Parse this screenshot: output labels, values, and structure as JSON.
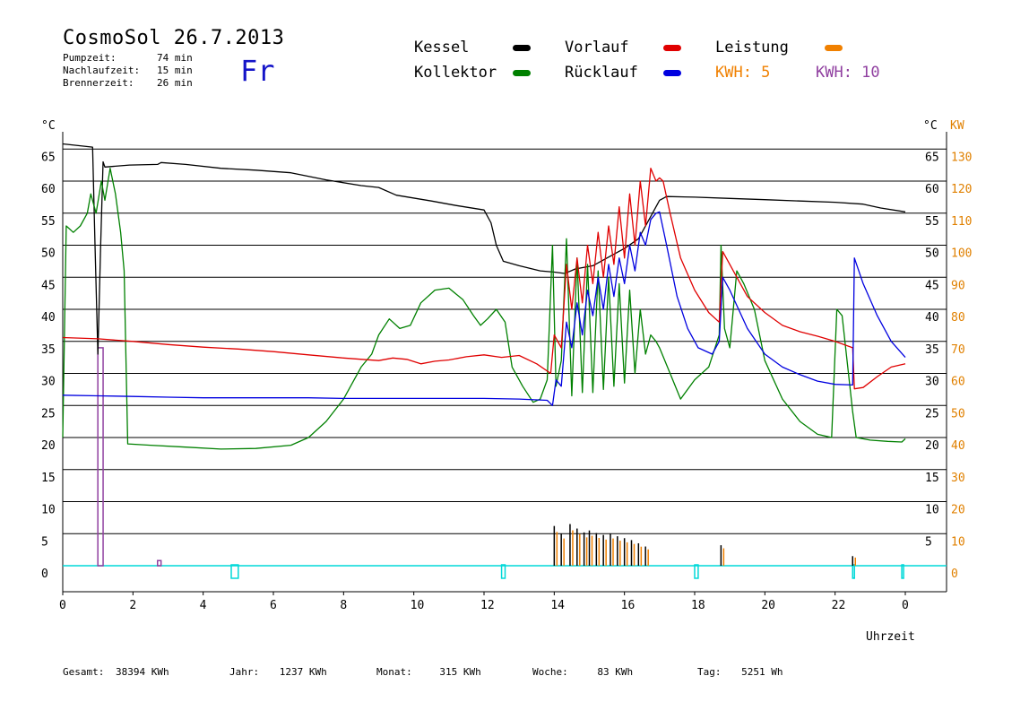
{
  "header": {
    "title": "CosmoSol 26.7.2013",
    "day": "Fr",
    "info": [
      {
        "label": "Pumpzeit:",
        "value": "74 min"
      },
      {
        "label": "Nachlaufzeit:",
        "value": "15 min"
      },
      {
        "label": "Brennerzeit:",
        "value": "26 min"
      }
    ]
  },
  "legend": {
    "kessel": {
      "label": "Kessel",
      "color": "#000000"
    },
    "kollektor": {
      "label": "Kollektor",
      "color": "#008000"
    },
    "vorlauf": {
      "label": "Vorlauf",
      "color": "#e00000"
    },
    "ruecklauf": {
      "label": "Rücklauf",
      "color": "#0000e0"
    },
    "leistung": {
      "label": "Leistung",
      "color": "#f08000"
    },
    "kwh5": {
      "label": "KWH: 5",
      "color": "#f08000"
    },
    "kwh10": {
      "label": "KWH: 10",
      "color": "#9040a0"
    }
  },
  "footer": {
    "gesamt_label": "Gesamt:",
    "gesamt_value": "38394 KWh",
    "jahr_label": "Jahr:",
    "jahr_value": "1237 KWh",
    "monat_label": "Monat:",
    "monat_value": "315 KWh",
    "woche_label": "Woche:",
    "woche_value": "83 KWh",
    "tag_label": "Tag:",
    "tag_value": "5251 Wh"
  },
  "chart_data": {
    "type": "line",
    "xlabel": "Uhrzeit",
    "ylabel_left": "°C",
    "ylabel_right_1": "°C",
    "ylabel_right_2": "KW",
    "x_range": [
      0,
      24
    ],
    "x_ticks": [
      "0",
      "2",
      "4",
      "6",
      "8",
      "10",
      "12",
      "14",
      "16",
      "18",
      "20",
      "22",
      "0"
    ],
    "y_left_ticks": [
      0,
      5,
      10,
      15,
      20,
      25,
      30,
      35,
      40,
      45,
      50,
      55,
      60,
      65
    ],
    "y_right_ticks": [
      5,
      10,
      15,
      20,
      25,
      30,
      35,
      40,
      45,
      50,
      55,
      60,
      65
    ],
    "kw_ticks": [
      0,
      10,
      20,
      30,
      40,
      50,
      60,
      70,
      80,
      90,
      100,
      110,
      120,
      130
    ],
    "ylim": [
      0,
      67
    ],
    "grid": true,
    "series": [
      {
        "name": "Kessel",
        "color": "#000000",
        "points": [
          [
            0,
            65.8
          ],
          [
            0.85,
            65.3
          ],
          [
            0.92,
            50
          ],
          [
            1.0,
            33
          ],
          [
            1.08,
            50
          ],
          [
            1.15,
            63
          ],
          [
            1.2,
            62.2
          ],
          [
            1.9,
            62.5
          ],
          [
            2.7,
            62.6
          ],
          [
            2.8,
            62.9
          ],
          [
            3.5,
            62.6
          ],
          [
            4.5,
            62
          ],
          [
            5.5,
            61.7
          ],
          [
            6.5,
            61.3
          ],
          [
            7.5,
            60.2
          ],
          [
            8.5,
            59.3
          ],
          [
            9.0,
            59
          ],
          [
            9.5,
            57.8
          ],
          [
            10.5,
            56.9
          ],
          [
            11.2,
            56.2
          ],
          [
            12.0,
            55.5
          ],
          [
            12.2,
            53.5
          ],
          [
            12.35,
            50
          ],
          [
            12.55,
            47.5
          ],
          [
            13.0,
            46.8
          ],
          [
            13.6,
            46
          ],
          [
            14.0,
            45.8
          ],
          [
            14.3,
            45.6
          ],
          [
            14.6,
            46.3
          ],
          [
            15.1,
            46.8
          ],
          [
            15.5,
            48
          ],
          [
            16.0,
            49.5
          ],
          [
            16.4,
            51
          ],
          [
            16.7,
            54
          ],
          [
            17.0,
            57
          ],
          [
            17.2,
            57.6
          ],
          [
            18.0,
            57.5
          ],
          [
            19.0,
            57.3
          ],
          [
            20.0,
            57.1
          ],
          [
            21.0,
            56.9
          ],
          [
            22.0,
            56.7
          ],
          [
            22.8,
            56.4
          ],
          [
            23.3,
            55.8
          ],
          [
            24.0,
            55.2
          ]
        ]
      },
      {
        "name": "Kollektor",
        "color": "#008000",
        "points": [
          [
            0,
            20
          ],
          [
            0.1,
            53
          ],
          [
            0.3,
            52
          ],
          [
            0.5,
            53
          ],
          [
            0.7,
            55
          ],
          [
            0.8,
            58
          ],
          [
            0.95,
            55
          ],
          [
            1.1,
            60
          ],
          [
            1.2,
            57
          ],
          [
            1.35,
            62
          ],
          [
            1.5,
            58
          ],
          [
            1.65,
            52
          ],
          [
            1.75,
            46
          ],
          [
            1.85,
            19
          ],
          [
            2.5,
            18.8
          ],
          [
            3.5,
            18.5
          ],
          [
            4.5,
            18.2
          ],
          [
            5.5,
            18.3
          ],
          [
            6.5,
            18.8
          ],
          [
            7.0,
            20
          ],
          [
            7.5,
            22.5
          ],
          [
            8.0,
            26
          ],
          [
            8.5,
            31
          ],
          [
            8.8,
            33
          ],
          [
            9.0,
            36
          ],
          [
            9.3,
            38.5
          ],
          [
            9.6,
            37
          ],
          [
            9.9,
            37.5
          ],
          [
            10.2,
            41
          ],
          [
            10.6,
            43
          ],
          [
            11.0,
            43.3
          ],
          [
            11.4,
            41.5
          ],
          [
            11.7,
            39
          ],
          [
            11.9,
            37.5
          ],
          [
            12.1,
            38.5
          ],
          [
            12.35,
            40
          ],
          [
            12.6,
            38
          ],
          [
            12.8,
            31
          ],
          [
            13.1,
            28
          ],
          [
            13.4,
            25.5
          ],
          [
            13.6,
            26
          ],
          [
            13.8,
            29
          ],
          [
            13.95,
            50
          ],
          [
            14.05,
            28
          ],
          [
            14.2,
            32
          ],
          [
            14.35,
            51
          ],
          [
            14.5,
            26.5
          ],
          [
            14.65,
            48
          ],
          [
            14.8,
            27
          ],
          [
            14.95,
            47
          ],
          [
            15.1,
            27
          ],
          [
            15.25,
            46
          ],
          [
            15.4,
            27.5
          ],
          [
            15.55,
            45
          ],
          [
            15.7,
            28
          ],
          [
            15.85,
            44
          ],
          [
            16.0,
            28.5
          ],
          [
            16.15,
            43
          ],
          [
            16.3,
            30
          ],
          [
            16.45,
            40
          ],
          [
            16.6,
            33
          ],
          [
            16.75,
            36
          ],
          [
            16.9,
            35
          ],
          [
            17.0,
            34
          ],
          [
            17.3,
            30
          ],
          [
            17.6,
            26
          ],
          [
            18.0,
            29
          ],
          [
            18.4,
            31
          ],
          [
            18.7,
            36
          ],
          [
            18.75,
            50
          ],
          [
            18.85,
            37
          ],
          [
            19.0,
            34
          ],
          [
            19.2,
            46
          ],
          [
            19.4,
            44
          ],
          [
            19.7,
            40
          ],
          [
            20.0,
            32
          ],
          [
            20.5,
            26
          ],
          [
            21.0,
            22.5
          ],
          [
            21.5,
            20.5
          ],
          [
            21.9,
            20
          ],
          [
            22.05,
            40
          ],
          [
            22.2,
            39
          ],
          [
            22.5,
            24
          ],
          [
            22.6,
            20
          ],
          [
            23.0,
            19.6
          ],
          [
            23.5,
            19.4
          ],
          [
            23.9,
            19.3
          ],
          [
            24.0,
            19.8
          ]
        ]
      },
      {
        "name": "Vorlauf",
        "color": "#e00000",
        "points": [
          [
            0,
            35.6
          ],
          [
            1,
            35.4
          ],
          [
            2,
            35
          ],
          [
            3,
            34.5
          ],
          [
            4,
            34.1
          ],
          [
            5,
            33.8
          ],
          [
            6,
            33.4
          ],
          [
            7,
            32.9
          ],
          [
            8,
            32.4
          ],
          [
            9,
            32
          ],
          [
            9.4,
            32.4
          ],
          [
            9.8,
            32.2
          ],
          [
            10.2,
            31.5
          ],
          [
            10.6,
            31.9
          ],
          [
            11,
            32.1
          ],
          [
            11.5,
            32.6
          ],
          [
            12,
            32.9
          ],
          [
            12.5,
            32.5
          ],
          [
            13,
            32.8
          ],
          [
            13.5,
            31.5
          ],
          [
            13.9,
            30
          ],
          [
            14.0,
            36
          ],
          [
            14.2,
            34
          ],
          [
            14.35,
            47
          ],
          [
            14.5,
            40
          ],
          [
            14.65,
            48
          ],
          [
            14.8,
            41
          ],
          [
            14.95,
            50
          ],
          [
            15.1,
            44
          ],
          [
            15.25,
            52
          ],
          [
            15.4,
            45
          ],
          [
            15.55,
            53
          ],
          [
            15.7,
            47
          ],
          [
            15.85,
            56
          ],
          [
            16.0,
            48
          ],
          [
            16.15,
            58
          ],
          [
            16.3,
            50
          ],
          [
            16.45,
            60
          ],
          [
            16.6,
            53
          ],
          [
            16.75,
            62
          ],
          [
            16.9,
            60
          ],
          [
            17.0,
            60.5
          ],
          [
            17.1,
            60
          ],
          [
            17.3,
            55
          ],
          [
            17.6,
            48
          ],
          [
            18.0,
            43
          ],
          [
            18.4,
            39.5
          ],
          [
            18.7,
            38
          ],
          [
            18.8,
            49
          ],
          [
            19.0,
            47
          ],
          [
            19.5,
            42
          ],
          [
            20.0,
            39.5
          ],
          [
            20.5,
            37.5
          ],
          [
            21.0,
            36.5
          ],
          [
            21.5,
            35.8
          ],
          [
            22.0,
            35
          ],
          [
            22.5,
            34
          ],
          [
            22.55,
            27.6
          ],
          [
            22.8,
            27.8
          ],
          [
            23.2,
            29.5
          ],
          [
            23.6,
            31
          ],
          [
            24.0,
            31.5
          ]
        ]
      },
      {
        "name": "Rücklauf",
        "color": "#0000e0",
        "points": [
          [
            0,
            26.6
          ],
          [
            1,
            26.5
          ],
          [
            2,
            26.4
          ],
          [
            3,
            26.3
          ],
          [
            4,
            26.2
          ],
          [
            5,
            26.2
          ],
          [
            6,
            26.2
          ],
          [
            7,
            26.2
          ],
          [
            8,
            26.1
          ],
          [
            9,
            26.1
          ],
          [
            10,
            26.1
          ],
          [
            11,
            26.1
          ],
          [
            12,
            26.1
          ],
          [
            13,
            26.0
          ],
          [
            13.8,
            25.8
          ],
          [
            13.95,
            25
          ],
          [
            14.05,
            29
          ],
          [
            14.2,
            28
          ],
          [
            14.35,
            38
          ],
          [
            14.5,
            34
          ],
          [
            14.65,
            41
          ],
          [
            14.8,
            36
          ],
          [
            14.95,
            43
          ],
          [
            15.1,
            39
          ],
          [
            15.25,
            45
          ],
          [
            15.4,
            40
          ],
          [
            15.55,
            47
          ],
          [
            15.7,
            42
          ],
          [
            15.85,
            48
          ],
          [
            16.0,
            44
          ],
          [
            16.15,
            50
          ],
          [
            16.3,
            46
          ],
          [
            16.45,
            52
          ],
          [
            16.6,
            50
          ],
          [
            16.75,
            54
          ],
          [
            16.9,
            55
          ],
          [
            17.0,
            55.2
          ],
          [
            17.2,
            50
          ],
          [
            17.5,
            42
          ],
          [
            17.8,
            37
          ],
          [
            18.1,
            34
          ],
          [
            18.5,
            33
          ],
          [
            18.7,
            35
          ],
          [
            18.8,
            45
          ],
          [
            19.0,
            43
          ],
          [
            19.5,
            37
          ],
          [
            20.0,
            33
          ],
          [
            20.5,
            31
          ],
          [
            21.0,
            29.8
          ],
          [
            21.5,
            28.8
          ],
          [
            22.0,
            28.3
          ],
          [
            22.5,
            28.2
          ],
          [
            22.55,
            48
          ],
          [
            22.8,
            44
          ],
          [
            23.2,
            39
          ],
          [
            23.6,
            35
          ],
          [
            24.0,
            32.5
          ]
        ]
      }
    ],
    "kwh10_bars": [
      [
        1.0,
        1.15,
        34
      ],
      [
        2.7,
        2.8,
        0.8
      ]
    ],
    "power_spikes": [
      [
        14.0,
        6.2
      ],
      [
        14.2,
        5
      ],
      [
        14.45,
        6.5
      ],
      [
        14.65,
        5.8
      ],
      [
        14.85,
        5.2
      ],
      [
        15.0,
        5.5
      ],
      [
        15.2,
        5.1
      ],
      [
        15.4,
        4.8
      ],
      [
        15.6,
        5.0
      ],
      [
        15.8,
        4.6
      ],
      [
        16.0,
        4.3
      ],
      [
        16.2,
        4.0
      ],
      [
        16.4,
        3.5
      ],
      [
        16.6,
        3.0
      ],
      [
        18.75,
        3.2
      ],
      [
        22.5,
        1.5
      ]
    ],
    "pump_markers": [
      [
        4.8,
        5.0
      ],
      [
        12.5,
        12.6
      ],
      [
        18.0,
        18.1
      ],
      [
        22.5,
        22.55
      ],
      [
        23.9,
        23.95
      ]
    ]
  }
}
